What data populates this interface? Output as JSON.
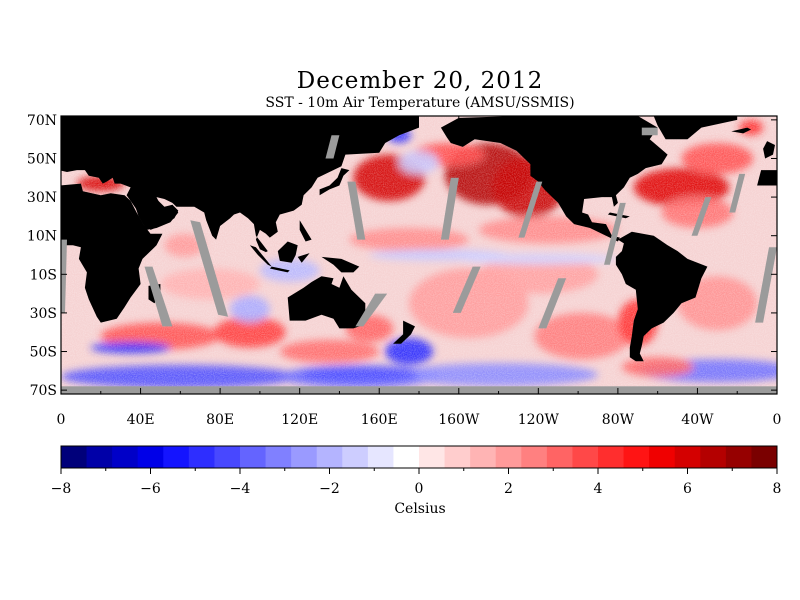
{
  "title": "December 20, 2012",
  "subtitle": "SST - 10m Air Temperature (AMSU/SSMIS)",
  "map": {
    "lat_labels": [
      "70N",
      "50N",
      "30N",
      "10N",
      "10S",
      "30S",
      "50S",
      "70S"
    ],
    "lat_values": [
      70,
      50,
      30,
      10,
      -10,
      -30,
      -50,
      -70
    ],
    "lon_labels": [
      "0",
      "40E",
      "80E",
      "120E",
      "160E",
      "160W",
      "120W",
      "80W",
      "40W",
      "0"
    ],
    "lon_values": [
      0,
      40,
      80,
      120,
      160,
      200,
      240,
      280,
      320,
      360
    ],
    "lon_range": [
      0,
      360
    ],
    "lat_range": [
      -72,
      72
    ],
    "colors": {
      "land": "#000000",
      "no_data": "#9b9b9b"
    }
  },
  "colorbar": {
    "range": [
      -8,
      8
    ],
    "tick_labels": [
      "−8",
      "−6",
      "−4",
      "−2",
      "0",
      "2",
      "4",
      "6",
      "8"
    ],
    "tick_values": [
      -8,
      -6,
      -4,
      -2,
      0,
      2,
      4,
      6,
      8
    ],
    "units": "Celsius",
    "colors": [
      "#00007a",
      "#0000a8",
      "#0000c8",
      "#0000e8",
      "#1414ff",
      "#2e2eff",
      "#4848ff",
      "#6464ff",
      "#8080ff",
      "#9a9aff",
      "#b4b4ff",
      "#cdcdff",
      "#e6e6ff",
      "#ffffff",
      "#ffe6e6",
      "#ffcdcd",
      "#ffb4b4",
      "#ff9a9a",
      "#ff8080",
      "#ff6464",
      "#ff4848",
      "#ff2e2e",
      "#ff1414",
      "#f00000",
      "#d40000",
      "#b40000",
      "#960000",
      "#7a0000"
    ]
  }
}
